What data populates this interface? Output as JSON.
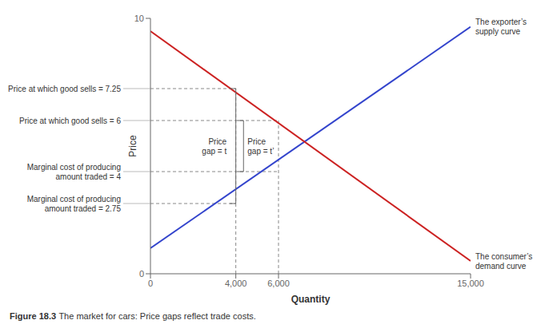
{
  "chart_data": {
    "type": "line",
    "x": [
      0,
      15000
    ],
    "series": [
      {
        "color": "#3344cc",
        "label": "The exporter’s\nsupply curve",
        "values": [
          1.0,
          9.667
        ]
      },
      {
        "color": "#cc2222",
        "label": "The consumer’s\ndemand curve",
        "values": [
          9.5,
          0.5
        ]
      }
    ],
    "xlabel": "Quantity",
    "ylabel": "Price",
    "xlim": [
      0,
      15000
    ],
    "xticks": [
      0,
      {
        "value": 4000,
        "label": "4,000"
      },
      {
        "value": 6000,
        "label": "6,000"
      },
      {
        "value": 15000,
        "label": "15,000"
      }
    ],
    "ylim": [
      0,
      10
    ],
    "yticks": [
      0,
      10
    ],
    "grid": false,
    "reference_lines": [
      {
        "y": 7.25,
        "x": 4000
      },
      {
        "y": 6.0,
        "x": 6000
      },
      {
        "y": 4.0,
        "x": 6000
      },
      {
        "y": 2.75,
        "x": 4000
      }
    ],
    "vertical_lines": [
      {
        "x": 4000,
        "y": 7.25
      },
      {
        "x": 6000,
        "y": 6.0
      }
    ],
    "brackets": [
      {
        "text": "Price\ngap = t",
        "x": 4000,
        "y_low": 2.75,
        "y_high": 7.25
      },
      {
        "text": "Price\ngap = t’",
        "x": 4360,
        "y_low": 4.0,
        "y_high": 6.0
      }
    ],
    "annotations": [
      {
        "text": "Price at which good sells = 7.25",
        "y": 7.25
      },
      {
        "text": "Price at which good sells = 6",
        "y": 6.0
      },
      {
        "text": "Marginal cost of producing\namount traded = 4",
        "y": 4.0
      },
      {
        "text": "Marginal cost of producing\namount traded = 2.75",
        "y": 2.75
      }
    ],
    "caption_bold": "Figure 18.3",
    "caption": "The market for cars: Price gaps reflect trade costs."
  }
}
